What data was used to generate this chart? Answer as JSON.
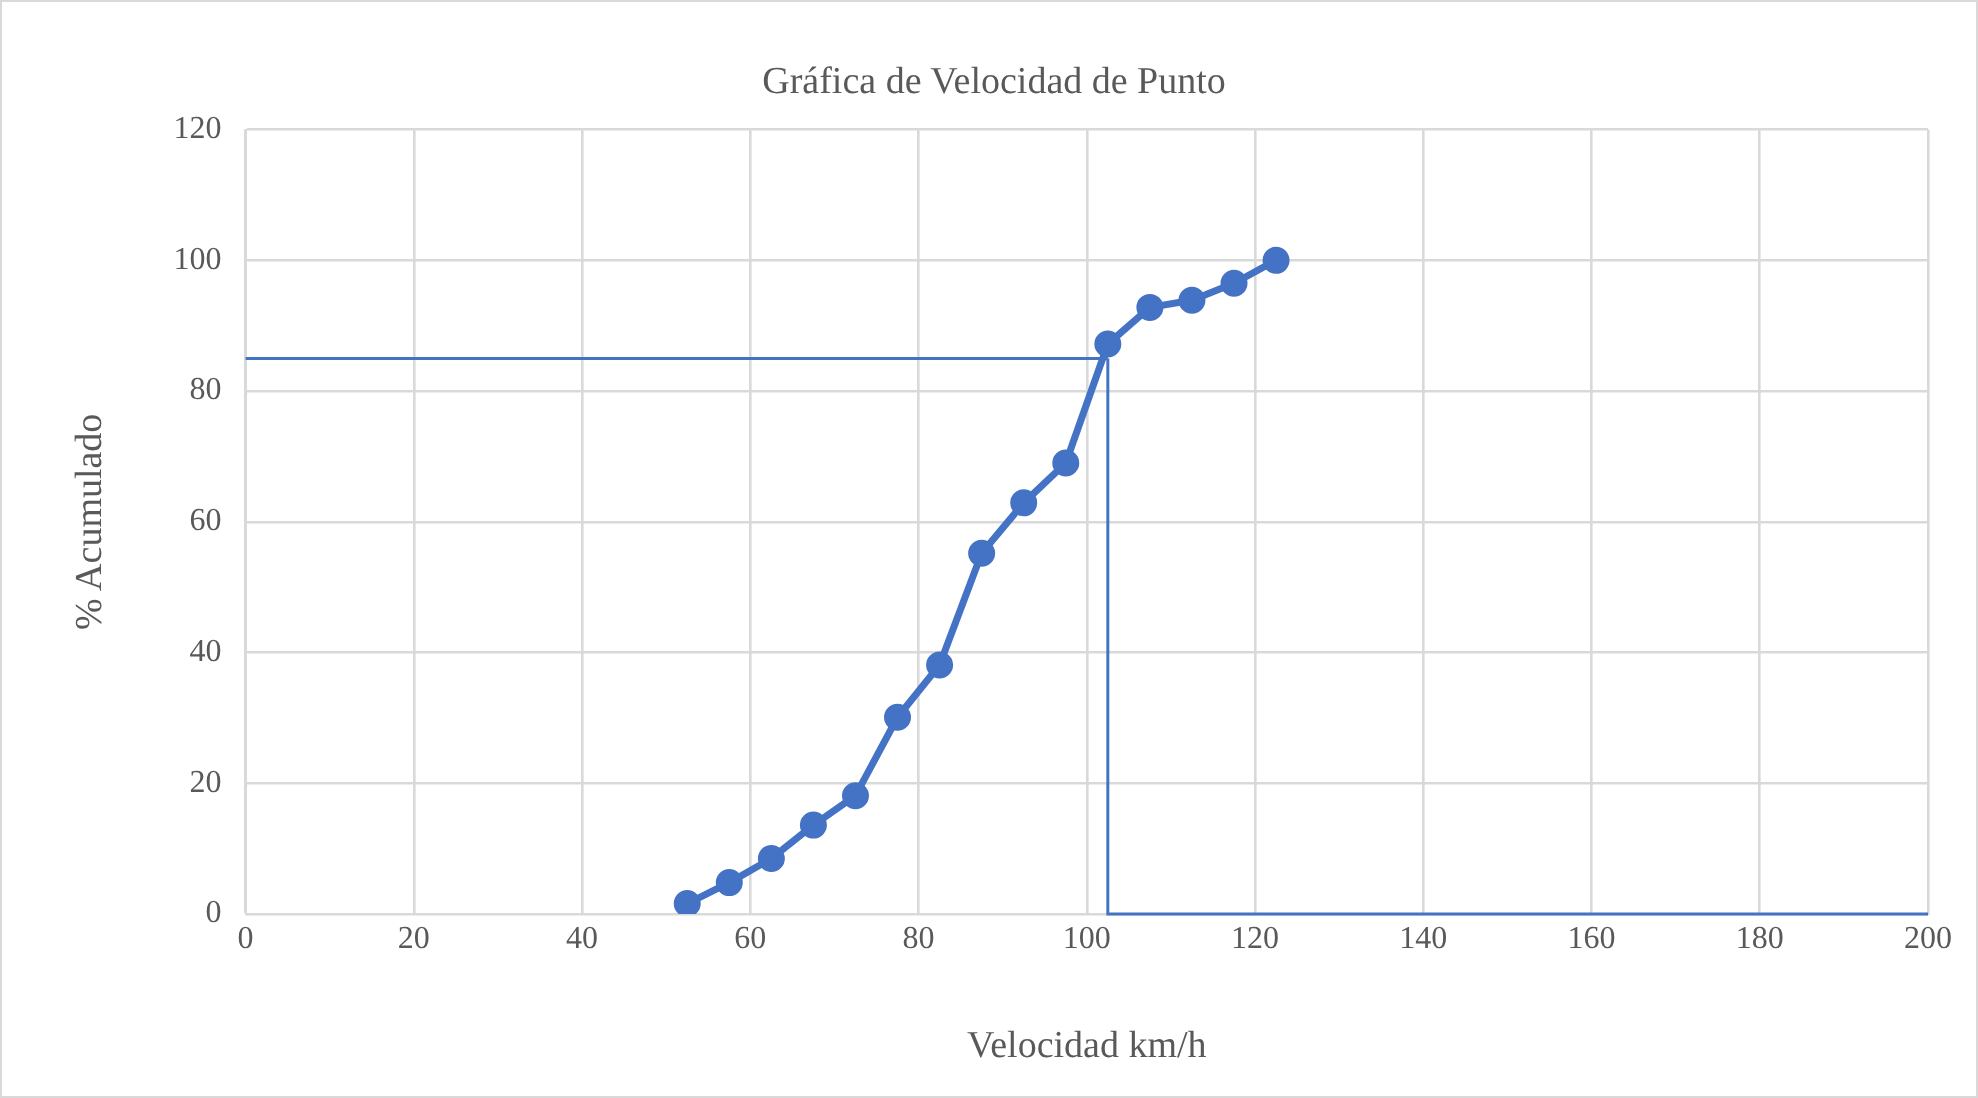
{
  "chart_data": {
    "type": "line",
    "title": "Gráfica de Velocidad de Punto",
    "xlabel": "Velocidad km/h",
    "ylabel": "% Acumulado",
    "x": [
      52.5,
      57.5,
      62.5,
      67.5,
      72.5,
      77.5,
      82.5,
      87.5,
      92.5,
      97.5,
      102.5,
      107.5,
      112.5,
      117.5,
      122.5
    ],
    "series": [
      {
        "color": "#4472c4",
        "values": [
          1.6,
          4.8,
          8.5,
          13.6,
          18.1,
          30.1,
          38.1,
          55.2,
          62.9,
          69.0,
          87.2,
          92.8,
          93.9,
          96.5,
          100
        ]
      }
    ],
    "xlim": [
      0,
      200
    ],
    "xticks": [
      0,
      20,
      40,
      60,
      80,
      100,
      120,
      140,
      160,
      180,
      200
    ],
    "ylim": [
      0,
      120
    ],
    "yticks": [
      0,
      20,
      40,
      60,
      80,
      100,
      120
    ],
    "ref_lines": [
      {
        "axis": "y",
        "value": 85,
        "color": "#4472c4"
      },
      {
        "axis": "x",
        "value": 102.5,
        "color": "#4472c4"
      }
    ],
    "grid": true,
    "legend": false,
    "marker": "circle",
    "line_style": "solid"
  }
}
